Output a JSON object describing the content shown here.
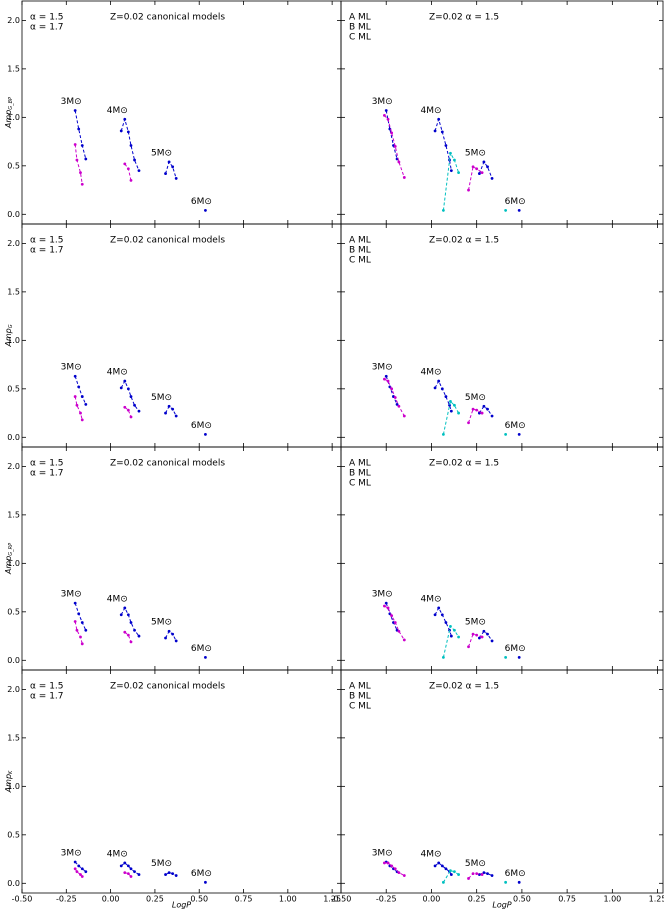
{
  "chart_data": [
    {
      "type": "line",
      "title": "Z=0.02   canonical models",
      "y_label": "Amp",
      "y_label_sub": "G_BP",
      "xlim": [
        -0.5,
        1.3
      ],
      "ylim": [
        -0.1,
        2.2
      ],
      "xticks": [
        -0.5,
        -0.25,
        0,
        0.25,
        0.5,
        0.75,
        1,
        1.25
      ],
      "yticks": [
        {
          "value": 0,
          "label": "0.0"
        },
        {
          "value": 0.5,
          "label": "0.5"
        },
        {
          "value": 1,
          "label": "1.0"
        },
        {
          "value": 1.5,
          "label": "1.5"
        },
        {
          "value": 2,
          "label": "2.0"
        }
      ],
      "series": [
        {
          "name": "α = 1.5",
          "color": "#0000cc",
          "x": [
            -0.2,
            -0.18,
            -0.16,
            -0.14,
            null,
            0.06,
            0.08,
            0.1,
            0.115,
            0.135,
            0.16,
            null,
            0.31,
            0.33,
            0.35,
            0.37,
            null,
            0.535
          ],
          "values": [
            1.07,
            0.88,
            0.71,
            0.57,
            null,
            0.86,
            0.98,
            0.85,
            0.71,
            0.56,
            0.45,
            null,
            0.42,
            0.54,
            0.49,
            0.37,
            null,
            0.04
          ]
        },
        {
          "name": "α = 1.7",
          "color": "#cc00cc",
          "x": [
            -0.2,
            -0.19,
            -0.17,
            -0.16,
            null,
            0.08,
            0.1,
            0.115
          ],
          "values": [
            0.72,
            0.56,
            0.43,
            0.31,
            null,
            0.52,
            0.47,
            0.35
          ]
        }
      ],
      "mass_labels": [
        "3M⊙",
        "4M⊙",
        "5M⊙",
        "6M⊙"
      ]
    },
    {
      "type": "line",
      "title": "Z=0.02   α = 1.5",
      "xlim": [
        -0.5,
        1.28
      ],
      "ylim": [
        -0.1,
        2.2
      ],
      "xticks": [
        -0.5,
        -0.25,
        0,
        0.25,
        0.5,
        0.75,
        1,
        1.25
      ],
      "yticks": [
        0,
        0.5,
        1,
        1.5,
        2
      ],
      "series": [
        {
          "name": "A ML",
          "color": "#0000cc",
          "x": [
            -0.25,
            -0.23,
            -0.21,
            -0.19,
            null,
            0.02,
            0.04,
            0.06,
            0.08,
            0.1,
            0.11,
            null,
            0.265,
            0.29,
            0.31,
            0.335,
            null,
            0.485
          ],
          "values": [
            1.07,
            0.88,
            0.71,
            0.57,
            null,
            0.86,
            0.98,
            0.85,
            0.71,
            0.56,
            0.45,
            null,
            0.42,
            0.54,
            0.49,
            0.37,
            null,
            0.04
          ]
        },
        {
          "name": "B ML",
          "color": "#cc00cc",
          "x": [
            -0.26,
            -0.24,
            -0.22,
            -0.2,
            -0.18,
            -0.15,
            null,
            0.205,
            0.23,
            0.25,
            0.28
          ],
          "values": [
            1.02,
            0.98,
            0.84,
            0.7,
            0.54,
            0.38,
            null,
            0.25,
            0.49,
            0.47,
            0.43
          ]
        },
        {
          "name": "C ML",
          "color": "#00c0c0",
          "x": [
            0.066,
            0.105,
            0.127,
            0.15,
            null,
            0.41
          ],
          "values": [
            0.04,
            0.63,
            0.56,
            0.43,
            null,
            0.04
          ]
        }
      ],
      "mass_labels": [
        "3M⊙",
        "4M⊙",
        "5M⊙",
        "6M⊙"
      ]
    },
    {
      "type": "line",
      "title": "Z=0.02   canonical models",
      "y_label": "Amp",
      "y_label_sub": "G",
      "xlim": [
        -0.5,
        1.3
      ],
      "ylim": [
        -0.1,
        2.2
      ],
      "xticks": [
        -0.5,
        -0.25,
        0,
        0.25,
        0.5,
        0.75,
        1,
        1.25
      ],
      "yticks": [
        {
          "value": 0,
          "label": "0.0"
        },
        {
          "value": 0.5,
          "label": "0.5"
        },
        {
          "value": 1,
          "label": "1.0"
        },
        {
          "value": 1.5,
          "label": "1.5"
        },
        {
          "value": 2,
          "label": "2.0"
        }
      ],
      "series": [
        {
          "name": "α = 1.5",
          "color": "#0000cc",
          "x": [
            -0.2,
            -0.18,
            -0.16,
            -0.14,
            null,
            0.06,
            0.08,
            0.1,
            0.115,
            0.135,
            0.16,
            null,
            0.31,
            0.33,
            0.35,
            0.37,
            null,
            0.535
          ],
          "values": [
            0.63,
            0.52,
            0.42,
            0.34,
            null,
            0.51,
            0.58,
            0.5,
            0.42,
            0.33,
            0.27,
            null,
            0.25,
            0.32,
            0.29,
            0.22,
            null,
            0.03
          ]
        },
        {
          "name": "α = 1.7",
          "color": "#cc00cc",
          "x": [
            -0.2,
            -0.19,
            -0.17,
            -0.16,
            null,
            0.08,
            0.1,
            0.115
          ],
          "values": [
            0.42,
            0.33,
            0.25,
            0.18,
            null,
            0.31,
            0.28,
            0.21
          ]
        }
      ],
      "mass_labels": [
        "3M⊙",
        "4M⊙",
        "5M⊙",
        "6M⊙"
      ]
    },
    {
      "type": "line",
      "title": "Z=0.02   α = 1.5",
      "xlim": [
        -0.5,
        1.28
      ],
      "ylim": [
        -0.1,
        2.2
      ],
      "xticks": [
        -0.5,
        -0.25,
        0,
        0.25,
        0.5,
        0.75,
        1,
        1.25
      ],
      "yticks": [
        0,
        0.5,
        1,
        1.5,
        2
      ],
      "series": [
        {
          "name": "A ML",
          "color": "#0000cc",
          "x": [
            -0.25,
            -0.23,
            -0.21,
            -0.19,
            null,
            0.02,
            0.04,
            0.06,
            0.08,
            0.1,
            0.11,
            null,
            0.265,
            0.29,
            0.31,
            0.335,
            null,
            0.485
          ],
          "values": [
            0.63,
            0.52,
            0.42,
            0.34,
            null,
            0.51,
            0.58,
            0.5,
            0.42,
            0.33,
            0.27,
            null,
            0.25,
            0.32,
            0.29,
            0.22,
            null,
            0.03
          ]
        },
        {
          "name": "B ML",
          "color": "#cc00cc",
          "x": [
            -0.26,
            -0.24,
            -0.22,
            -0.2,
            -0.18,
            -0.15,
            null,
            0.205,
            0.23,
            0.25,
            0.28
          ],
          "values": [
            0.6,
            0.58,
            0.5,
            0.41,
            0.32,
            0.22,
            null,
            0.15,
            0.29,
            0.28,
            0.25
          ]
        },
        {
          "name": "C ML",
          "color": "#00c0c0",
          "x": [
            0.066,
            0.105,
            0.127,
            0.15,
            null,
            0.41
          ],
          "values": [
            0.03,
            0.37,
            0.33,
            0.25,
            null,
            0.03
          ]
        }
      ],
      "mass_labels": [
        "3M⊙",
        "4M⊙",
        "5M⊙",
        "6M⊙"
      ]
    },
    {
      "type": "line",
      "title": "Z=0.02   canonical models",
      "y_label": "Amp",
      "y_label_sub": "G_RP",
      "xlim": [
        -0.5,
        1.3
      ],
      "ylim": [
        -0.1,
        2.2
      ],
      "xticks": [
        -0.5,
        -0.25,
        0,
        0.25,
        0.5,
        0.75,
        1,
        1.25
      ],
      "yticks": [
        {
          "value": 0,
          "label": "0.0"
        },
        {
          "value": 0.5,
          "label": "0.5"
        },
        {
          "value": 1,
          "label": "1.0"
        },
        {
          "value": 1.5,
          "label": "1.5"
        },
        {
          "value": 2,
          "label": "2.0"
        }
      ],
      "series": [
        {
          "name": "α = 1.5",
          "color": "#0000cc",
          "x": [
            -0.2,
            -0.18,
            -0.16,
            -0.14,
            null,
            0.06,
            0.08,
            0.1,
            0.115,
            0.135,
            0.16,
            null,
            0.31,
            0.33,
            0.35,
            0.37,
            null,
            0.535
          ],
          "values": [
            0.59,
            0.48,
            0.39,
            0.31,
            null,
            0.47,
            0.54,
            0.47,
            0.39,
            0.31,
            0.25,
            null,
            0.23,
            0.3,
            0.27,
            0.2,
            null,
            0.03
          ]
        },
        {
          "name": "α = 1.7",
          "color": "#cc00cc",
          "x": [
            -0.2,
            -0.19,
            -0.17,
            -0.16,
            null,
            0.08,
            0.1,
            0.115
          ],
          "values": [
            0.4,
            0.31,
            0.24,
            0.17,
            null,
            0.29,
            0.26,
            0.19
          ]
        }
      ],
      "mass_labels": [
        "3M⊙",
        "4M⊙",
        "5M⊙",
        "6M⊙"
      ]
    },
    {
      "type": "line",
      "title": "Z=0.02   α = 1.5",
      "xlim": [
        -0.5,
        1.28
      ],
      "ylim": [
        -0.1,
        2.2
      ],
      "xticks": [
        -0.5,
        -0.25,
        0,
        0.25,
        0.5,
        0.75,
        1,
        1.25
      ],
      "yticks": [
        0,
        0.5,
        1,
        1.5,
        2
      ],
      "series": [
        {
          "name": "A ML",
          "color": "#0000cc",
          "x": [
            -0.25,
            -0.23,
            -0.21,
            -0.19,
            null,
            0.02,
            0.04,
            0.06,
            0.08,
            0.1,
            0.11,
            null,
            0.265,
            0.29,
            0.31,
            0.335,
            null,
            0.485
          ],
          "values": [
            0.59,
            0.48,
            0.39,
            0.31,
            null,
            0.47,
            0.54,
            0.47,
            0.39,
            0.31,
            0.25,
            null,
            0.23,
            0.3,
            0.27,
            0.2,
            null,
            0.03
          ]
        },
        {
          "name": "B ML",
          "color": "#cc00cc",
          "x": [
            -0.26,
            -0.24,
            -0.22,
            -0.2,
            -0.18,
            -0.15,
            null,
            0.205,
            0.23,
            0.25,
            0.28
          ],
          "values": [
            0.56,
            0.54,
            0.46,
            0.39,
            0.3,
            0.21,
            null,
            0.14,
            0.27,
            0.26,
            0.24
          ]
        },
        {
          "name": "C ML",
          "color": "#00c0c0",
          "x": [
            0.066,
            0.105,
            0.127,
            0.15,
            null,
            0.41
          ],
          "values": [
            0.03,
            0.35,
            0.31,
            0.24,
            null,
            0.03
          ]
        }
      ],
      "mass_labels": [
        "3M⊙",
        "4M⊙",
        "5M⊙",
        "6M⊙"
      ]
    },
    {
      "type": "line",
      "title": "Z=0.02   canonical models",
      "y_label": "Amp",
      "y_label_sub": "K",
      "x_label": "LogP",
      "xlim": [
        -0.5,
        1.3
      ],
      "ylim": [
        -0.1,
        2.2
      ],
      "xticks": [
        {
          "value": -0.5,
          "label": "-0.50"
        },
        {
          "value": -0.25,
          "label": "-0.25"
        },
        {
          "value": 0,
          "label": "0.00"
        },
        {
          "value": 0.25,
          "label": "0.25"
        },
        {
          "value": 0.5,
          "label": "0.50"
        },
        {
          "value": 0.75,
          "label": "0.75"
        },
        {
          "value": 1,
          "label": "1.00"
        },
        {
          "value": 1.25,
          "label": "1.25"
        }
      ],
      "yticks": [
        {
          "value": 0,
          "label": "0.0"
        },
        {
          "value": 0.5,
          "label": "0.5"
        },
        {
          "value": 1,
          "label": "1.0"
        },
        {
          "value": 1.5,
          "label": "1.5"
        },
        {
          "value": 2,
          "label": "2.0"
        }
      ],
      "series": [
        {
          "name": "α = 1.5",
          "color": "#0000cc",
          "x": [
            -0.2,
            -0.18,
            -0.16,
            -0.14,
            null,
            0.06,
            0.08,
            0.1,
            0.115,
            0.135,
            0.16,
            null,
            0.31,
            0.33,
            0.35,
            0.37,
            null,
            0.535
          ],
          "values": [
            0.22,
            0.18,
            0.15,
            0.12,
            null,
            0.18,
            0.21,
            0.18,
            0.15,
            0.12,
            0.09,
            null,
            0.09,
            0.11,
            0.1,
            0.08,
            null,
            0.01
          ]
        },
        {
          "name": "α = 1.7",
          "color": "#cc00cc",
          "x": [
            -0.2,
            -0.19,
            -0.17,
            -0.16,
            null,
            0.08,
            0.1,
            0.115
          ],
          "values": [
            0.15,
            0.12,
            0.09,
            0.07,
            null,
            0.11,
            0.1,
            0.07
          ]
        }
      ],
      "mass_labels": [
        "3M⊙",
        "4M⊙",
        "5M⊙",
        "6M⊙"
      ]
    },
    {
      "type": "line",
      "title": "Z=0.02   α = 1.5",
      "x_label": "LogP",
      "xlim": [
        -0.5,
        1.28
      ],
      "ylim": [
        -0.1,
        2.2
      ],
      "xticks": [
        {
          "value": -0.5,
          "label": "-0.50"
        },
        {
          "value": -0.25,
          "label": "-0.25"
        },
        {
          "value": 0,
          "label": "0.00"
        },
        {
          "value": 0.25,
          "label": "0.25"
        },
        {
          "value": 0.5,
          "label": "0.50"
        },
        {
          "value": 0.75,
          "label": "0.75"
        },
        {
          "value": 1,
          "label": "1.00"
        },
        {
          "value": 1.25,
          "label": "1.25"
        }
      ],
      "yticks": [
        0,
        0.5,
        1,
        1.5,
        2
      ],
      "series": [
        {
          "name": "A ML",
          "color": "#0000cc",
          "x": [
            -0.25,
            -0.23,
            -0.21,
            -0.19,
            null,
            0.02,
            0.04,
            0.06,
            0.08,
            0.1,
            0.11,
            null,
            0.265,
            0.29,
            0.31,
            0.335,
            null,
            0.485
          ],
          "values": [
            0.22,
            0.18,
            0.15,
            0.12,
            null,
            0.18,
            0.21,
            0.18,
            0.15,
            0.12,
            0.09,
            null,
            0.09,
            0.11,
            0.1,
            0.08,
            null,
            0.01
          ]
        },
        {
          "name": "B ML",
          "color": "#cc00cc",
          "x": [
            -0.26,
            -0.24,
            -0.22,
            -0.2,
            -0.18,
            -0.15,
            null,
            0.205,
            0.23,
            0.25,
            0.28
          ],
          "values": [
            0.21,
            0.21,
            0.18,
            0.15,
            0.11,
            0.08,
            null,
            0.05,
            0.1,
            0.1,
            0.09
          ]
        },
        {
          "name": "C ML",
          "color": "#00c0c0",
          "x": [
            0.066,
            0.105,
            0.127,
            0.15,
            null,
            0.41
          ],
          "values": [
            0.01,
            0.13,
            0.12,
            0.09,
            null,
            0.01
          ]
        }
      ],
      "mass_labels": [
        "3M⊙",
        "4M⊙",
        "5M⊙",
        "6M⊙"
      ]
    }
  ]
}
